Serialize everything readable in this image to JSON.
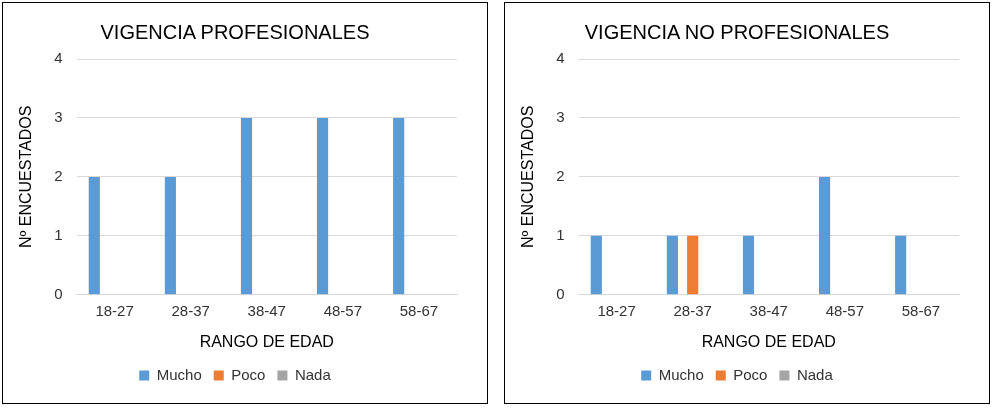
{
  "chart_data": [
    {
      "type": "bar",
      "title": "VIGENCIA PROFESIONALES",
      "xlabel": "RANGO DE EDAD",
      "ylabel": "Nº ENCUESTADOS",
      "categories": [
        "18-27",
        "28-37",
        "38-47",
        "48-57",
        "58-67"
      ],
      "series": [
        {
          "name": "Mucho",
          "color": "#5b9bd5",
          "values": [
            2,
            2,
            3,
            3,
            3
          ]
        },
        {
          "name": "Poco",
          "color": "#ed7d31",
          "values": [
            0,
            0,
            0,
            0,
            0
          ]
        },
        {
          "name": "Nada",
          "color": "#a5a5a5",
          "values": [
            0,
            0,
            0,
            0,
            0
          ]
        }
      ],
      "ylim": [
        0,
        4
      ],
      "yticks": [
        0,
        1,
        2,
        3,
        4
      ],
      "grid": "y",
      "legend": "bottom"
    },
    {
      "type": "bar",
      "title": "VIGENCIA NO PROFESIONALES",
      "xlabel": "RANGO DE EDAD",
      "ylabel": "Nº ENCUESTADOS",
      "categories": [
        "18-27",
        "28-37",
        "38-47",
        "48-57",
        "58-67"
      ],
      "series": [
        {
          "name": "Mucho",
          "color": "#5b9bd5",
          "values": [
            1,
            1,
            1,
            2,
            1
          ]
        },
        {
          "name": "Poco",
          "color": "#ed7d31",
          "values": [
            0,
            1,
            0,
            0,
            0
          ]
        },
        {
          "name": "Nada",
          "color": "#a5a5a5",
          "values": [
            0,
            0,
            0,
            0,
            0
          ]
        }
      ],
      "ylim": [
        0,
        4
      ],
      "yticks": [
        0,
        1,
        2,
        3,
        4
      ],
      "grid": "y",
      "legend": "bottom"
    }
  ]
}
